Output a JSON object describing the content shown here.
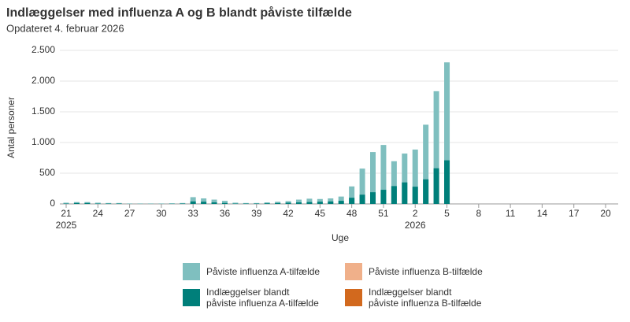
{
  "chart_data": {
    "type": "bar",
    "title": "Indlæggelser med influenza A og B blandt påviste tilfælde",
    "subtitle": "Opdateret 4. februar 2026",
    "y_label": "Antal personer",
    "x_label": "Uge",
    "categories": [
      "21",
      null,
      null,
      "24",
      null,
      null,
      "27",
      null,
      null,
      "30",
      null,
      null,
      "33",
      null,
      null,
      "36",
      null,
      null,
      "39",
      null,
      null,
      "42",
      null,
      null,
      "45",
      null,
      null,
      "48",
      null,
      null,
      "51",
      null,
      null,
      "2",
      null,
      null,
      "5",
      null,
      null,
      "8",
      null,
      null,
      "11",
      null,
      null,
      "14",
      null,
      null,
      "17",
      null,
      null,
      "20"
    ],
    "category_years": [
      "2025",
      null,
      null,
      null,
      null,
      null,
      null,
      null,
      null,
      null,
      null,
      null,
      null,
      null,
      null,
      null,
      null,
      null,
      null,
      null,
      null,
      null,
      null,
      null,
      null,
      null,
      null,
      null,
      null,
      null,
      null,
      null,
      null,
      "2026",
      null,
      null,
      null,
      null,
      null,
      null,
      null,
      null,
      null,
      null,
      null,
      null,
      null,
      null,
      null,
      null,
      null,
      null
    ],
    "ylim": [
      0,
      2500
    ],
    "yticks": [
      0,
      500,
      {
        "value": 1000,
        "label": "1.000"
      },
      {
        "value": 1500,
        "label": "1.500"
      },
      {
        "value": 2000,
        "label": "2.000"
      },
      {
        "value": 2500,
        "label": "2.500"
      }
    ],
    "grid": true,
    "stacked": false,
    "series": [
      {
        "name": "Påviste influenza A-tilfælde",
        "color": "#7fbfbf",
        "values": [
          20,
          30,
          30,
          20,
          15,
          15,
          5,
          5,
          5,
          5,
          10,
          15,
          110,
          90,
          70,
          50,
          20,
          15,
          15,
          25,
          35,
          45,
          70,
          85,
          80,
          90,
          120,
          285,
          575,
          845,
          960,
          695,
          820,
          885,
          1290,
          1835,
          2305,
          null,
          null,
          null,
          null,
          null,
          null,
          null,
          null,
          null,
          null,
          null,
          null,
          null,
          null,
          null
        ]
      },
      {
        "name": "Påviste influenza B-tilfælde",
        "color": "#f0b08a",
        "values": [
          null,
          null,
          null,
          null,
          null,
          null,
          null,
          null,
          null,
          null,
          null,
          null,
          null,
          null,
          null,
          null,
          null,
          null,
          null,
          null,
          null,
          null,
          null,
          null,
          null,
          null,
          null,
          null,
          null,
          null,
          null,
          null,
          null,
          null,
          null,
          null,
          null,
          null,
          null,
          null,
          null,
          null,
          null,
          null,
          null,
          null,
          null,
          null,
          null,
          null,
          null,
          null
        ]
      },
      {
        "name": "Indlæggelser blandt\npåviste influenza A-tilfælde",
        "color": "#007f7a",
        "values": [
          5,
          15,
          15,
          5,
          5,
          5,
          2,
          2,
          2,
          2,
          3,
          5,
          40,
          35,
          25,
          15,
          5,
          5,
          5,
          10,
          15,
          20,
          25,
          30,
          35,
          40,
          50,
          100,
          150,
          190,
          230,
          290,
          350,
          280,
          400,
          580,
          710,
          null,
          null,
          null,
          null,
          null,
          null,
          null,
          null,
          null,
          null,
          null,
          null,
          null,
          null,
          null
        ]
      },
      {
        "name": "Indlæggelser blandt\npåviste influenza B-tilfælde",
        "color": "#d2691e",
        "values": [
          null,
          null,
          null,
          null,
          null,
          null,
          null,
          null,
          null,
          null,
          null,
          null,
          null,
          null,
          null,
          null,
          null,
          null,
          null,
          null,
          null,
          null,
          null,
          null,
          null,
          null,
          null,
          null,
          null,
          null,
          null,
          null,
          null,
          null,
          null,
          null,
          null,
          null,
          null,
          null,
          null,
          null,
          null,
          null,
          null,
          null,
          null,
          null,
          null,
          null,
          null,
          null
        ]
      }
    ]
  }
}
